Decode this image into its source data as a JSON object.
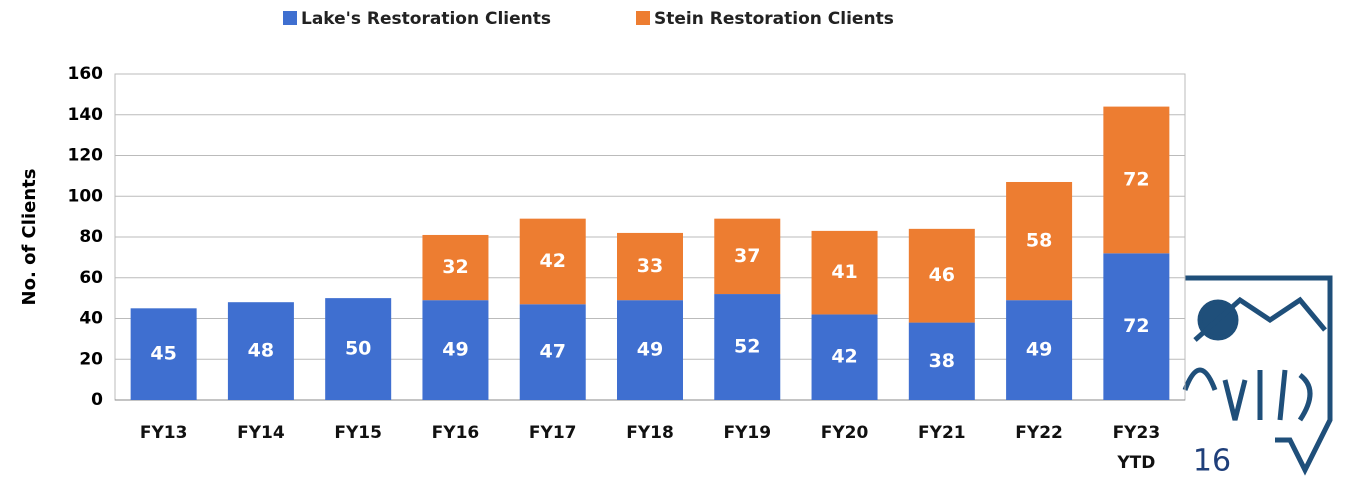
{
  "chart_data": {
    "type": "stacked_bar",
    "categories": [
      "FY13",
      "FY14",
      "FY15",
      "FY16",
      "FY17",
      "FY18",
      "FY19",
      "FY20",
      "FY21",
      "FY22",
      "FY23 YTD"
    ],
    "series": [
      {
        "name": "Lake's Restoration Clients",
        "color": "#3f6fd0",
        "values": [
          45,
          48,
          50,
          49,
          47,
          49,
          52,
          42,
          38,
          49,
          72
        ]
      },
      {
        "name": "Stein Restoration Clients",
        "color": "#ed7d31",
        "values": [
          null,
          null,
          null,
          32,
          42,
          33,
          37,
          41,
          46,
          58,
          72
        ]
      }
    ],
    "y_label": "No. of Clients",
    "ylim": [
      0,
      160
    ],
    "yticks": [
      0,
      20,
      40,
      60,
      80,
      100,
      120,
      140,
      160
    ],
    "grid": true,
    "legend": "top"
  },
  "slide": {
    "page_number": "16"
  }
}
